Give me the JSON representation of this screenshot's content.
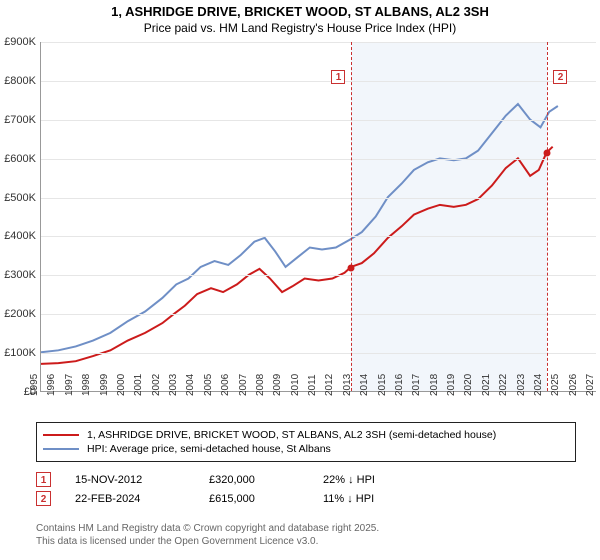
{
  "title": "1, ASHRIDGE DRIVE, BRICKET WOOD, ST ALBANS, AL2 3SH",
  "subtitle": "Price paid vs. HM Land Registry's House Price Index (HPI)",
  "chart": {
    "type": "line",
    "background_color": "#ffffff",
    "grid_color": "#e6e6e6",
    "shading_color": "#e8eef7",
    "x_years": [
      1995,
      1996,
      1997,
      1998,
      1999,
      2000,
      2001,
      2002,
      2003,
      2004,
      2005,
      2006,
      2007,
      2008,
      2009,
      2010,
      2011,
      2012,
      2013,
      2014,
      2015,
      2016,
      2017,
      2018,
      2019,
      2020,
      2021,
      2022,
      2023,
      2024,
      2025,
      2026,
      2027
    ],
    "xlim": [
      1995,
      2027
    ],
    "ylim": [
      0,
      900000
    ],
    "ytick_step": 100000,
    "ytick_labels": [
      "£0",
      "£100K",
      "£200K",
      "£300K",
      "£400K",
      "£500K",
      "£600K",
      "£700K",
      "£800K",
      "£900K"
    ],
    "shaded_range": [
      2012.87,
      2024.15
    ],
    "series": [
      {
        "id": "property",
        "label": "1, ASHRIDGE DRIVE, BRICKET WOOD, ST ALBANS, AL2 3SH (semi-detached house)",
        "color": "#cc1b1b",
        "line_width": 2,
        "data": [
          [
            1995.0,
            70000
          ],
          [
            1996.0,
            72000
          ],
          [
            1997.0,
            77000
          ],
          [
            1998.0,
            90000
          ],
          [
            1999.0,
            105000
          ],
          [
            2000.0,
            130000
          ],
          [
            2001.0,
            150000
          ],
          [
            2002.0,
            175000
          ],
          [
            2002.7,
            200000
          ],
          [
            2003.3,
            220000
          ],
          [
            2004.0,
            250000
          ],
          [
            2004.8,
            265000
          ],
          [
            2005.5,
            255000
          ],
          [
            2006.3,
            275000
          ],
          [
            2007.0,
            300000
          ],
          [
            2007.6,
            315000
          ],
          [
            2008.2,
            290000
          ],
          [
            2008.9,
            255000
          ],
          [
            2009.5,
            270000
          ],
          [
            2010.2,
            290000
          ],
          [
            2011.0,
            285000
          ],
          [
            2011.8,
            290000
          ],
          [
            2012.5,
            305000
          ],
          [
            2012.87,
            320000
          ],
          [
            2013.5,
            330000
          ],
          [
            2014.2,
            355000
          ],
          [
            2015.0,
            395000
          ],
          [
            2015.8,
            425000
          ],
          [
            2016.5,
            455000
          ],
          [
            2017.3,
            470000
          ],
          [
            2018.0,
            480000
          ],
          [
            2018.8,
            475000
          ],
          [
            2019.5,
            480000
          ],
          [
            2020.2,
            495000
          ],
          [
            2021.0,
            530000
          ],
          [
            2021.8,
            575000
          ],
          [
            2022.5,
            600000
          ],
          [
            2023.2,
            555000
          ],
          [
            2023.7,
            570000
          ],
          [
            2024.15,
            615000
          ],
          [
            2024.5,
            630000
          ]
        ]
      },
      {
        "id": "hpi",
        "label": "HPI: Average price, semi-detached house, St Albans",
        "color": "#6f8fc6",
        "line_width": 2,
        "data": [
          [
            1995.0,
            100000
          ],
          [
            1996.0,
            105000
          ],
          [
            1997.0,
            115000
          ],
          [
            1998.0,
            130000
          ],
          [
            1999.0,
            150000
          ],
          [
            2000.0,
            180000
          ],
          [
            2001.0,
            205000
          ],
          [
            2002.0,
            240000
          ],
          [
            2002.8,
            275000
          ],
          [
            2003.5,
            290000
          ],
          [
            2004.2,
            320000
          ],
          [
            2005.0,
            335000
          ],
          [
            2005.8,
            325000
          ],
          [
            2006.5,
            350000
          ],
          [
            2007.3,
            385000
          ],
          [
            2007.9,
            395000
          ],
          [
            2008.5,
            360000
          ],
          [
            2009.1,
            320000
          ],
          [
            2009.8,
            345000
          ],
          [
            2010.5,
            370000
          ],
          [
            2011.2,
            365000
          ],
          [
            2012.0,
            370000
          ],
          [
            2012.8,
            390000
          ],
          [
            2013.5,
            410000
          ],
          [
            2014.3,
            450000
          ],
          [
            2015.0,
            500000
          ],
          [
            2015.8,
            535000
          ],
          [
            2016.5,
            570000
          ],
          [
            2017.3,
            590000
          ],
          [
            2018.0,
            600000
          ],
          [
            2018.8,
            595000
          ],
          [
            2019.5,
            600000
          ],
          [
            2020.2,
            620000
          ],
          [
            2021.0,
            665000
          ],
          [
            2021.8,
            710000
          ],
          [
            2022.5,
            740000
          ],
          [
            2023.2,
            700000
          ],
          [
            2023.8,
            680000
          ],
          [
            2024.3,
            720000
          ],
          [
            2024.8,
            735000
          ]
        ]
      }
    ],
    "markers": [
      {
        "n": "1",
        "x": 2012.87,
        "y": 320000,
        "color": "#cc1b1b"
      },
      {
        "n": "2",
        "x": 2024.15,
        "y": 615000,
        "color": "#cc1b1b"
      }
    ]
  },
  "legend": {
    "items": [
      {
        "color": "#cc1b1b",
        "label": "1, ASHRIDGE DRIVE, BRICKET WOOD, ST ALBANS, AL2 3SH (semi-detached house)"
      },
      {
        "color": "#6f8fc6",
        "label": "HPI: Average price, semi-detached house, St Albans"
      }
    ]
  },
  "events": [
    {
      "n": "1",
      "date": "15-NOV-2012",
      "price": "£320,000",
      "delta": "22% ↓ HPI"
    },
    {
      "n": "2",
      "date": "22-FEB-2024",
      "price": "£615,000",
      "delta": "11% ↓ HPI"
    }
  ],
  "footer": {
    "line1": "Contains HM Land Registry data © Crown copyright and database right 2025.",
    "line2": "This data is licensed under the Open Government Licence v3.0."
  }
}
